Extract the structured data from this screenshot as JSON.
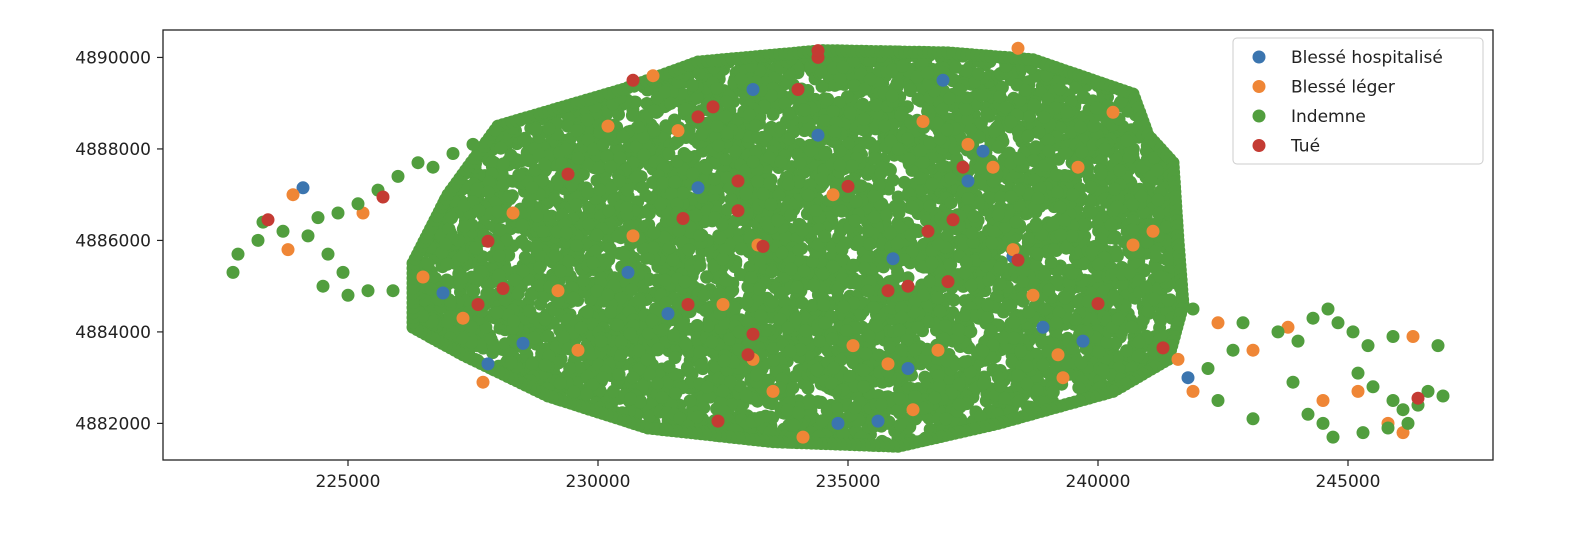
{
  "chart_data": {
    "type": "scatter",
    "title": "",
    "xlabel": "",
    "ylabel": "",
    "xlim": [
      221300,
      247900
    ],
    "ylim": [
      4881200,
      4890600
    ],
    "grid": false,
    "legend_position": "top-right",
    "x_ticks": [
      {
        "value": 225000,
        "label": "225000"
      },
      {
        "value": 230000,
        "label": "230000"
      },
      {
        "value": 235000,
        "label": "235000"
      },
      {
        "value": 240000,
        "label": "240000"
      },
      {
        "value": 245000,
        "label": "245000"
      }
    ],
    "y_ticks": [
      {
        "value": 4882000,
        "label": "4882000"
      },
      {
        "value": 4884000,
        "label": "4884000"
      },
      {
        "value": 4886000,
        "label": "4886000"
      },
      {
        "value": 4888000,
        "label": "4888000"
      },
      {
        "value": 4890000,
        "label": "4890000"
      }
    ],
    "series": [
      {
        "name": "Blessé hospitalisé",
        "color": "#3b75af",
        "points": [
          [
            224100,
            4887150
          ],
          [
            226900,
            4884850
          ],
          [
            227800,
            4883300
          ],
          [
            228500,
            4883750
          ],
          [
            231400,
            4884400
          ],
          [
            232000,
            4887150
          ],
          [
            233100,
            4889300
          ],
          [
            234400,
            4888300
          ],
          [
            234800,
            4882000
          ],
          [
            235600,
            4882050
          ],
          [
            235900,
            4885600
          ],
          [
            236900,
            4889500
          ],
          [
            237400,
            4887300
          ],
          [
            237700,
            4887950
          ],
          [
            238300,
            4885650
          ],
          [
            238900,
            4884100
          ],
          [
            239700,
            4883800
          ],
          [
            241800,
            4883000
          ],
          [
            230600,
            4885300
          ],
          [
            236200,
            4883200
          ]
        ]
      },
      {
        "name": "Blessé léger",
        "color": "#ef8636",
        "points": [
          [
            223800,
            4885800
          ],
          [
            223900,
            4887000
          ],
          [
            225300,
            4886600
          ],
          [
            226500,
            4885200
          ],
          [
            227300,
            4884300
          ],
          [
            227700,
            4882900
          ],
          [
            228300,
            4886600
          ],
          [
            229200,
            4884900
          ],
          [
            229600,
            4883600
          ],
          [
            230200,
            4888500
          ],
          [
            230700,
            4886100
          ],
          [
            231100,
            4889600
          ],
          [
            231600,
            4888400
          ],
          [
            232500,
            4884600
          ],
          [
            233100,
            4883400
          ],
          [
            233500,
            4882700
          ],
          [
            234100,
            4881700
          ],
          [
            235100,
            4883700
          ],
          [
            235800,
            4883300
          ],
          [
            236300,
            4882300
          ],
          [
            236800,
            4883600
          ],
          [
            237400,
            4888100
          ],
          [
            237900,
            4887600
          ],
          [
            238300,
            4885800
          ],
          [
            238700,
            4884800
          ],
          [
            239200,
            4883500
          ],
          [
            239600,
            4887600
          ],
          [
            240300,
            4888800
          ],
          [
            240700,
            4885900
          ],
          [
            241100,
            4886200
          ],
          [
            241600,
            4883400
          ],
          [
            241900,
            4882700
          ],
          [
            242400,
            4884200
          ],
          [
            243100,
            4883600
          ],
          [
            243800,
            4884100
          ],
          [
            244500,
            4882500
          ],
          [
            245200,
            4882700
          ],
          [
            245800,
            4882000
          ],
          [
            246100,
            4881800
          ],
          [
            246300,
            4883900
          ],
          [
            238400,
            4890200
          ],
          [
            236500,
            4888600
          ],
          [
            234700,
            4887000
          ],
          [
            233200,
            4885900
          ],
          [
            239300,
            4883000
          ]
        ]
      },
      {
        "name": "Indemne",
        "color": "#519e3e",
        "points": [
          [
            222700,
            4885300
          ],
          [
            222800,
            4885700
          ],
          [
            223200,
            4886000
          ],
          [
            223300,
            4886400
          ],
          [
            223700,
            4886200
          ],
          [
            224200,
            4886100
          ],
          [
            224600,
            4885700
          ],
          [
            224900,
            4885300
          ],
          [
            224500,
            4885000
          ],
          [
            224400,
            4886500
          ],
          [
            224800,
            4886600
          ],
          [
            225200,
            4886800
          ],
          [
            225600,
            4887100
          ],
          [
            226000,
            4887400
          ],
          [
            226400,
            4887700
          ],
          [
            226700,
            4887600
          ],
          [
            227100,
            4887900
          ],
          [
            227500,
            4888100
          ],
          [
            225000,
            4884800
          ],
          [
            225400,
            4884900
          ],
          [
            225900,
            4884900
          ],
          [
            243600,
            4884000
          ],
          [
            244000,
            4883800
          ],
          [
            244300,
            4884300
          ],
          [
            244600,
            4884500
          ],
          [
            244800,
            4884200
          ],
          [
            245100,
            4884000
          ],
          [
            245400,
            4883700
          ],
          [
            245200,
            4883100
          ],
          [
            245500,
            4882800
          ],
          [
            245900,
            4882500
          ],
          [
            246100,
            4882300
          ],
          [
            246400,
            4882400
          ],
          [
            246600,
            4882700
          ],
          [
            246900,
            4882600
          ],
          [
            246800,
            4883700
          ],
          [
            245800,
            4881900
          ],
          [
            245300,
            4881800
          ],
          [
            244700,
            4881700
          ],
          [
            244500,
            4882000
          ],
          [
            244200,
            4882200
          ],
          [
            243900,
            4882900
          ],
          [
            243100,
            4882100
          ],
          [
            242400,
            4882500
          ],
          [
            242200,
            4883200
          ],
          [
            242700,
            4883600
          ],
          [
            242900,
            4884200
          ],
          [
            241900,
            4884500
          ],
          [
            245900,
            4883900
          ],
          [
            246200,
            4882000
          ]
        ]
      },
      {
        "name": "Tué",
        "color": "#c43b33",
        "points": [
          [
            223400,
            4886450
          ],
          [
            225700,
            4886950
          ],
          [
            227800,
            4885980
          ],
          [
            227600,
            4884600
          ],
          [
            228100,
            4884950
          ],
          [
            229400,
            4887450
          ],
          [
            230700,
            4889500
          ],
          [
            231700,
            4886480
          ],
          [
            231800,
            4884600
          ],
          [
            232000,
            4888700
          ],
          [
            232300,
            4888920
          ],
          [
            232400,
            4882050
          ],
          [
            232800,
            4887300
          ],
          [
            232800,
            4886650
          ],
          [
            233000,
            4883500
          ],
          [
            233100,
            4883950
          ],
          [
            233300,
            4885870
          ],
          [
            234000,
            4889300
          ],
          [
            234400,
            4890000
          ],
          [
            234400,
            4890150
          ],
          [
            235000,
            4887180
          ],
          [
            235800,
            4884900
          ],
          [
            236200,
            4885000
          ],
          [
            236600,
            4886200
          ],
          [
            237000,
            4885100
          ],
          [
            237100,
            4886450
          ],
          [
            237300,
            4887600
          ],
          [
            238400,
            4885570
          ],
          [
            240000,
            4884620
          ],
          [
            241300,
            4883650
          ],
          [
            246400,
            4882550
          ]
        ]
      }
    ]
  },
  "page": {
    "background": "#ffffff",
    "axes_color": "#222222"
  }
}
